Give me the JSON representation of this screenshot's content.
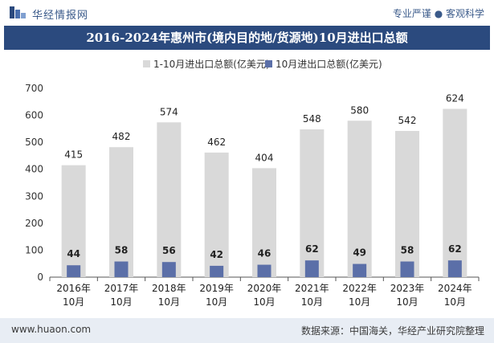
{
  "header": {
    "brand": "华经情报网",
    "tagline": "专业严谨 ● 客观科学"
  },
  "title": "2016-2024年惠州市(境内目的地/货源地)10月进出口总额",
  "footer": {
    "url": "www.huaon.com",
    "source": "数据来源：中国海关，华经产业研究院整理"
  },
  "colors": {
    "title_bg": "#2b4a7e",
    "series_total": "#d9d9d9",
    "series_oct": "#5b6fa8"
  },
  "chart_data": {
    "type": "bar",
    "categories": [
      "2016年\n10月",
      "2017年\n10月",
      "2018年\n10月",
      "2019年\n10月",
      "2020年\n10月",
      "2021年\n10月",
      "2022年\n10月",
      "2023年\n10月",
      "2024年\n10月"
    ],
    "series": [
      {
        "name": "1-10月进出口总额(亿美元)",
        "values": [
          415,
          482,
          574,
          462,
          404,
          548,
          580,
          542,
          624
        ]
      },
      {
        "name": "10月进出口总额(亿美元)",
        "values": [
          44,
          58,
          56,
          42,
          46,
          62,
          49,
          58,
          62
        ]
      }
    ],
    "ylim": [
      0,
      700
    ],
    "yticks": [
      0,
      100,
      200,
      300,
      400,
      500,
      600,
      700
    ],
    "legend": "top",
    "grid": false
  }
}
